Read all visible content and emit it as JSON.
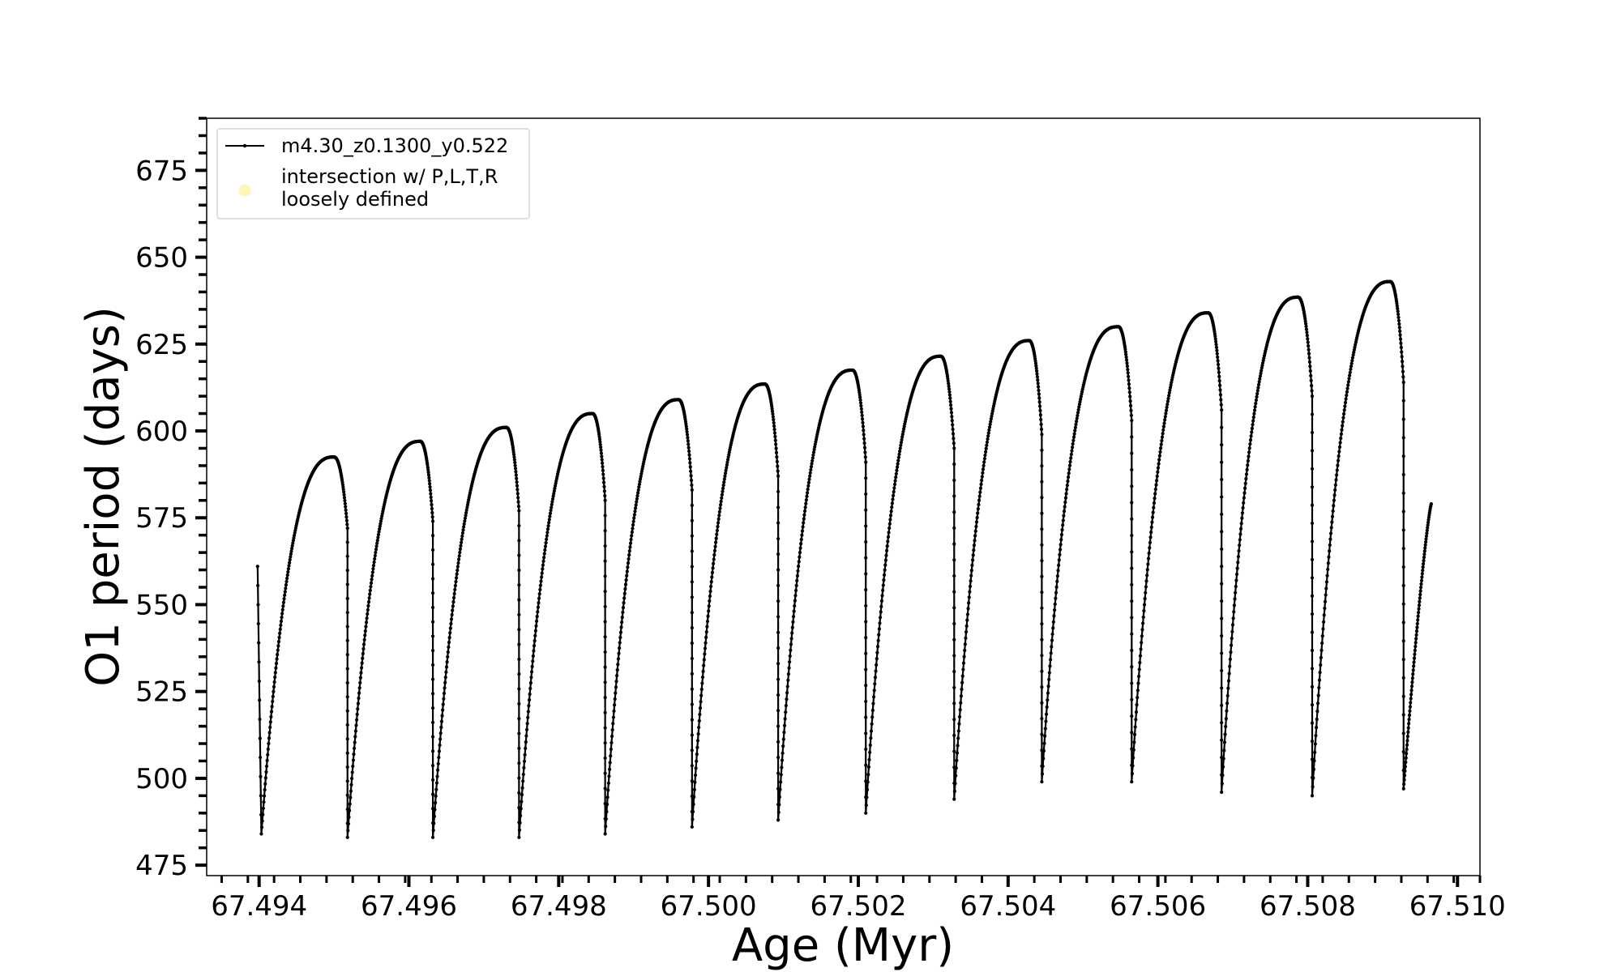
{
  "chart_data": {
    "type": "line",
    "title": "",
    "xlabel": "Age (Myr)",
    "ylabel": "O1 period (days)",
    "xlim": [
      67.4933,
      67.5103
    ],
    "ylim": [
      472,
      690
    ],
    "xticks": [
      67.494,
      67.496,
      67.498,
      67.5,
      67.502,
      67.504,
      67.506,
      67.508,
      67.51
    ],
    "xtick_labels": [
      "67.494",
      "67.496",
      "67.498",
      "67.500",
      "67.502",
      "67.504",
      "67.506",
      "67.508",
      "67.510"
    ],
    "yticks": [
      475,
      500,
      525,
      550,
      575,
      600,
      625,
      650,
      675
    ],
    "ytick_labels": [
      "475",
      "500",
      "525",
      "550",
      "575",
      "600",
      "625",
      "650",
      "675"
    ],
    "grid": false,
    "legend_position": "top-left",
    "legend": [
      {
        "label": "m4.30_z0.1300_y0.522",
        "marker": "line-dot",
        "color": "#000000"
      },
      {
        "label": "intersection w/ P,L,T,R loosely defined",
        "label_lines": [
          "intersection w/ P,L,T,R",
          "loosely defined"
        ],
        "marker": "circle",
        "color": "#fff3a6"
      }
    ],
    "series": [
      {
        "name": "m4.30_z0.1300_y0.522",
        "color": "#000000",
        "start": {
          "x": 67.49398,
          "y": 561
        },
        "end": {
          "x": 67.50965,
          "y": 579
        },
        "cycles": [
          {
            "trough_x": 67.49403,
            "trough_y": 484,
            "peak_x": 67.495,
            "peak_y": 592.5,
            "drop_x": 67.49518,
            "drop_start_y": 572
          },
          {
            "trough_x": 67.49518,
            "trough_y": 483,
            "peak_x": 67.49615,
            "peak_y": 597,
            "drop_x": 67.49632,
            "drop_start_y": 574
          },
          {
            "trough_x": 67.49632,
            "trough_y": 483,
            "peak_x": 67.4973,
            "peak_y": 601,
            "drop_x": 67.49747,
            "drop_start_y": 577
          },
          {
            "trough_x": 67.49747,
            "trough_y": 483,
            "peak_x": 67.49845,
            "peak_y": 605,
            "drop_x": 67.49862,
            "drop_start_y": 580
          },
          {
            "trough_x": 67.49862,
            "trough_y": 484,
            "peak_x": 67.4996,
            "peak_y": 609,
            "drop_x": 67.49978,
            "drop_start_y": 583
          },
          {
            "trough_x": 67.49978,
            "trough_y": 486,
            "peak_x": 67.50075,
            "peak_y": 613.5,
            "drop_x": 67.50093,
            "drop_start_y": 587
          },
          {
            "trough_x": 67.50093,
            "trough_y": 488,
            "peak_x": 67.50192,
            "peak_y": 617.5,
            "drop_x": 67.5021,
            "drop_start_y": 591
          },
          {
            "trough_x": 67.5021,
            "trough_y": 490,
            "peak_x": 67.5031,
            "peak_y": 621.5,
            "drop_x": 67.50328,
            "drop_start_y": 595
          },
          {
            "trough_x": 67.50328,
            "trough_y": 494,
            "peak_x": 67.50428,
            "peak_y": 626,
            "drop_x": 67.50445,
            "drop_start_y": 599
          },
          {
            "trough_x": 67.50445,
            "trough_y": 499,
            "peak_x": 67.50547,
            "peak_y": 630,
            "drop_x": 67.50565,
            "drop_start_y": 603
          },
          {
            "trough_x": 67.50565,
            "trough_y": 499,
            "peak_x": 67.50667,
            "peak_y": 634,
            "drop_x": 67.50685,
            "drop_start_y": 606
          },
          {
            "trough_x": 67.50685,
            "trough_y": 496,
            "peak_x": 67.50787,
            "peak_y": 638.5,
            "drop_x": 67.50806,
            "drop_start_y": 610
          },
          {
            "trough_x": 67.50806,
            "trough_y": 495,
            "peak_x": 67.5091,
            "peak_y": 643,
            "drop_x": 67.50928,
            "drop_start_y": 614
          },
          {
            "trough_x": 67.50928,
            "trough_y": 497
          }
        ]
      }
    ],
    "intersection_points": []
  }
}
